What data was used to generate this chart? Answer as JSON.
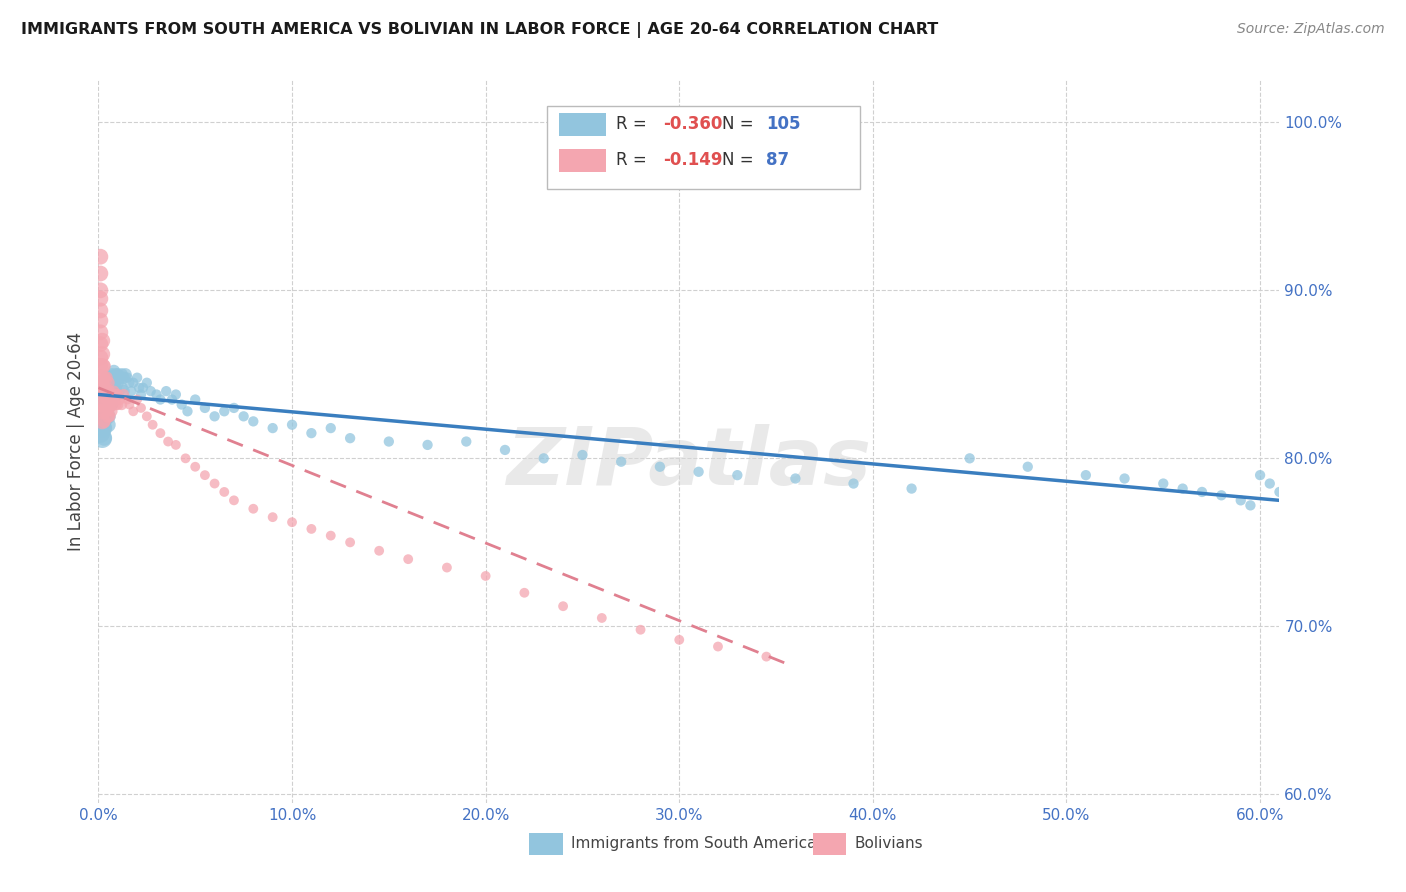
{
  "title": "IMMIGRANTS FROM SOUTH AMERICA VS BOLIVIAN IN LABOR FORCE | AGE 20-64 CORRELATION CHART",
  "source": "Source: ZipAtlas.com",
  "ylabel": "In Labor Force | Age 20-64",
  "xlim": [
    0.0,
    0.61
  ],
  "ylim": [
    0.595,
    1.025
  ],
  "xticks": [
    0.0,
    0.1,
    0.2,
    0.3,
    0.4,
    0.5,
    0.6
  ],
  "yticks": [
    0.6,
    0.7,
    0.8,
    0.9,
    1.0
  ],
  "ytick_labels": [
    "60.0%",
    "70.0%",
    "80.0%",
    "90.0%",
    "100.0%"
  ],
  "xtick_labels": [
    "0.0%",
    "10.0%",
    "20.0%",
    "30.0%",
    "40.0%",
    "50.0%",
    "60.0%"
  ],
  "r_blue": -0.36,
  "n_blue": 105,
  "r_pink": -0.149,
  "n_pink": 87,
  "blue_color": "#92c5de",
  "pink_color": "#f4a6b0",
  "blue_line_color": "#3a7ebf",
  "pink_line_color": "#e08090",
  "grid_color": "#d0d0d0",
  "watermark": "ZIPatlas",
  "legend_blue_label": "Immigrants from South America",
  "legend_pink_label": "Bolivians",
  "blue_line_x0": 0.0,
  "blue_line_x1": 0.61,
  "blue_line_y0": 0.838,
  "blue_line_y1": 0.775,
  "pink_line_x0": 0.0,
  "pink_line_x1": 0.355,
  "pink_line_y0": 0.842,
  "pink_line_y1": 0.678,
  "blue_x": [
    0.001,
    0.001,
    0.001,
    0.001,
    0.001,
    0.002,
    0.002,
    0.002,
    0.002,
    0.002,
    0.002,
    0.003,
    0.003,
    0.003,
    0.003,
    0.003,
    0.003,
    0.003,
    0.004,
    0.004,
    0.004,
    0.004,
    0.005,
    0.005,
    0.005,
    0.005,
    0.005,
    0.005,
    0.006,
    0.006,
    0.006,
    0.007,
    0.007,
    0.007,
    0.007,
    0.008,
    0.008,
    0.008,
    0.009,
    0.009,
    0.01,
    0.01,
    0.01,
    0.011,
    0.012,
    0.012,
    0.013,
    0.013,
    0.014,
    0.015,
    0.016,
    0.017,
    0.018,
    0.02,
    0.021,
    0.022,
    0.023,
    0.025,
    0.027,
    0.03,
    0.032,
    0.035,
    0.038,
    0.04,
    0.043,
    0.046,
    0.05,
    0.055,
    0.06,
    0.065,
    0.07,
    0.075,
    0.08,
    0.09,
    0.1,
    0.11,
    0.12,
    0.13,
    0.15,
    0.17,
    0.19,
    0.21,
    0.23,
    0.25,
    0.27,
    0.29,
    0.31,
    0.33,
    0.36,
    0.39,
    0.42,
    0.45,
    0.48,
    0.51,
    0.53,
    0.55,
    0.56,
    0.57,
    0.58,
    0.59,
    0.595,
    0.6,
    0.605,
    0.61,
    0.615
  ],
  "blue_y": [
    0.84,
    0.835,
    0.828,
    0.82,
    0.815,
    0.838,
    0.832,
    0.825,
    0.818,
    0.812,
    0.84,
    0.845,
    0.84,
    0.835,
    0.828,
    0.822,
    0.818,
    0.812,
    0.845,
    0.84,
    0.835,
    0.828,
    0.848,
    0.842,
    0.838,
    0.832,
    0.825,
    0.82,
    0.848,
    0.842,
    0.835,
    0.85,
    0.845,
    0.84,
    0.832,
    0.852,
    0.845,
    0.838,
    0.85,
    0.842,
    0.85,
    0.845,
    0.838,
    0.848,
    0.85,
    0.842,
    0.848,
    0.84,
    0.85,
    0.848,
    0.845,
    0.84,
    0.845,
    0.848,
    0.842,
    0.838,
    0.842,
    0.845,
    0.84,
    0.838,
    0.835,
    0.84,
    0.835,
    0.838,
    0.832,
    0.828,
    0.835,
    0.83,
    0.825,
    0.828,
    0.83,
    0.825,
    0.822,
    0.818,
    0.82,
    0.815,
    0.818,
    0.812,
    0.81,
    0.808,
    0.81,
    0.805,
    0.8,
    0.802,
    0.798,
    0.795,
    0.792,
    0.79,
    0.788,
    0.785,
    0.782,
    0.8,
    0.795,
    0.79,
    0.788,
    0.785,
    0.782,
    0.78,
    0.778,
    0.775,
    0.772,
    0.79,
    0.785,
    0.78,
    0.775
  ],
  "pink_x": [
    0.001,
    0.001,
    0.001,
    0.001,
    0.001,
    0.001,
    0.001,
    0.001,
    0.001,
    0.001,
    0.001,
    0.001,
    0.002,
    0.002,
    0.002,
    0.002,
    0.002,
    0.002,
    0.002,
    0.002,
    0.002,
    0.003,
    0.003,
    0.003,
    0.003,
    0.003,
    0.003,
    0.003,
    0.004,
    0.004,
    0.004,
    0.004,
    0.004,
    0.005,
    0.005,
    0.005,
    0.005,
    0.005,
    0.006,
    0.006,
    0.006,
    0.006,
    0.007,
    0.007,
    0.007,
    0.008,
    0.008,
    0.009,
    0.009,
    0.01,
    0.01,
    0.011,
    0.012,
    0.013,
    0.015,
    0.016,
    0.018,
    0.02,
    0.022,
    0.025,
    0.028,
    0.032,
    0.036,
    0.04,
    0.045,
    0.05,
    0.055,
    0.06,
    0.065,
    0.07,
    0.08,
    0.09,
    0.1,
    0.11,
    0.12,
    0.13,
    0.145,
    0.16,
    0.18,
    0.2,
    0.22,
    0.24,
    0.26,
    0.28,
    0.3,
    0.32,
    0.345
  ],
  "pink_y": [
    0.92,
    0.91,
    0.9,
    0.895,
    0.888,
    0.882,
    0.875,
    0.868,
    0.86,
    0.855,
    0.848,
    0.842,
    0.87,
    0.862,
    0.855,
    0.848,
    0.842,
    0.838,
    0.832,
    0.828,
    0.822,
    0.855,
    0.848,
    0.842,
    0.838,
    0.832,
    0.828,
    0.822,
    0.848,
    0.842,
    0.838,
    0.832,
    0.828,
    0.845,
    0.84,
    0.835,
    0.83,
    0.825,
    0.84,
    0.835,
    0.83,
    0.825,
    0.838,
    0.832,
    0.828,
    0.84,
    0.835,
    0.838,
    0.832,
    0.838,
    0.832,
    0.835,
    0.832,
    0.838,
    0.835,
    0.832,
    0.828,
    0.835,
    0.83,
    0.825,
    0.82,
    0.815,
    0.81,
    0.808,
    0.8,
    0.795,
    0.79,
    0.785,
    0.78,
    0.775,
    0.77,
    0.765,
    0.762,
    0.758,
    0.754,
    0.75,
    0.745,
    0.74,
    0.735,
    0.73,
    0.72,
    0.712,
    0.705,
    0.698,
    0.692,
    0.688,
    0.682
  ]
}
